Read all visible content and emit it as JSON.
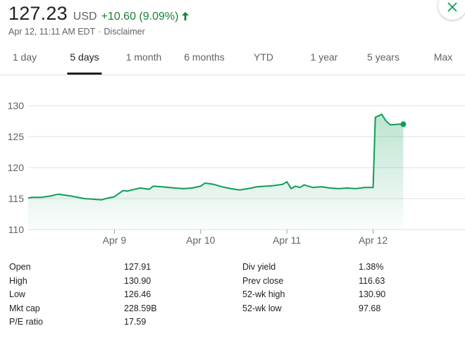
{
  "quote": {
    "price": "127.23",
    "currency": "USD",
    "change": "+10.60 (9.09%)",
    "timestamp": "Apr 12, 11:11 AM EDT",
    "separator": "·",
    "disclaimer": "Disclaimer"
  },
  "tabs": [
    {
      "label": "1 day",
      "active": false
    },
    {
      "label": "5 days",
      "active": true
    },
    {
      "label": "1 month",
      "active": false
    },
    {
      "label": "6 months",
      "active": false
    },
    {
      "label": "YTD",
      "active": false
    },
    {
      "label": "1 year",
      "active": false
    },
    {
      "label": "5 years",
      "active": false
    },
    {
      "label": "Max",
      "active": false
    }
  ],
  "colors": {
    "up": "#188038",
    "line": "#0f9d58",
    "grid": "#e0e0e0",
    "text": "#202124",
    "muted": "#5f6368"
  },
  "icons": {
    "close": "close-icon",
    "arrow": "arrow-up-icon"
  },
  "chart_data": {
    "type": "line",
    "title": "",
    "xlabel": "",
    "ylabel": "",
    "ylim": [
      110,
      130
    ],
    "yticks": [
      110,
      115,
      120,
      125,
      130
    ],
    "xlim": [
      0,
      100
    ],
    "xticks": [
      {
        "x": 20,
        "label": "Apr 9"
      },
      {
        "x": 40,
        "label": "Apr 10"
      },
      {
        "x": 60,
        "label": "Apr 11"
      },
      {
        "x": 80,
        "label": "Apr 12"
      }
    ],
    "grid": true,
    "series": [
      {
        "x": [
          0,
          1,
          3,
          5,
          7,
          10,
          13,
          15,
          17,
          18,
          20,
          22,
          23,
          24,
          26,
          28,
          29,
          31,
          34,
          36,
          38,
          40,
          41,
          43,
          45,
          47,
          49,
          51,
          53,
          55,
          57,
          59,
          60,
          61,
          62,
          63,
          64,
          65,
          66,
          68,
          70,
          72,
          74,
          76,
          78,
          80,
          80.5,
          82,
          83,
          84,
          86,
          87
        ],
        "values": [
          115.1,
          115.2,
          115.2,
          115.4,
          115.7,
          115.4,
          115.0,
          114.9,
          114.8,
          115.0,
          115.3,
          116.3,
          116.2,
          116.4,
          116.7,
          116.5,
          117.0,
          116.9,
          116.7,
          116.6,
          116.7,
          117.0,
          117.5,
          117.3,
          116.9,
          116.6,
          116.4,
          116.6,
          116.9,
          117.0,
          117.1,
          117.3,
          117.7,
          116.6,
          117.0,
          116.8,
          117.2,
          117.0,
          116.8,
          116.9,
          116.7,
          116.6,
          116.7,
          116.6,
          116.8,
          116.8,
          128.1,
          128.6,
          127.5,
          126.9,
          127.0,
          127.0
        ]
      }
    ]
  },
  "stats": {
    "left": [
      {
        "label": "Open",
        "value": "127.91"
      },
      {
        "label": "High",
        "value": "130.90"
      },
      {
        "label": "Low",
        "value": "126.46"
      },
      {
        "label": "Mkt cap",
        "value": "228.59B"
      },
      {
        "label": "P/E ratio",
        "value": "17.59"
      }
    ],
    "right": [
      {
        "label": "Div yield",
        "value": "1.38%"
      },
      {
        "label": "Prev close",
        "value": "116.63"
      },
      {
        "label": "52-wk high",
        "value": "130.90"
      },
      {
        "label": "52-wk low",
        "value": "97.68"
      }
    ]
  }
}
